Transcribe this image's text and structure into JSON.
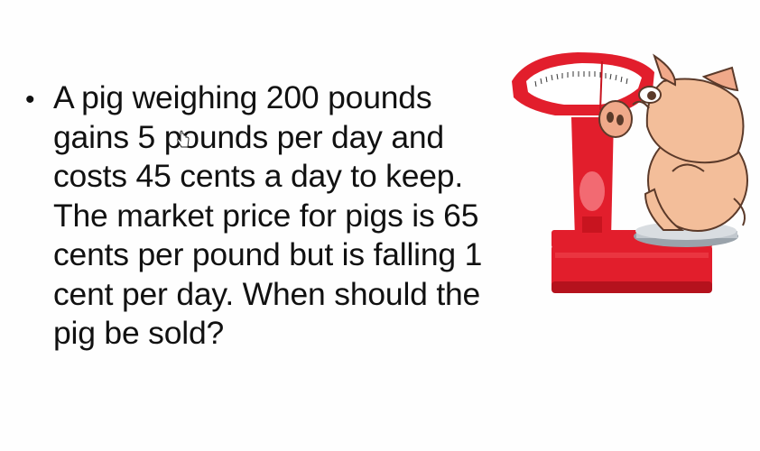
{
  "slide": {
    "bullet_symbol": "•",
    "bullet_text": "A pig weighing 200 pounds gains 5 pounds per day and costs 45 cents a day to keep. The market price for pigs is 65 cents per pound but is falling 1 cent per day. When should the pig be sold?"
  },
  "illustration": {
    "icon": "pig-on-scale-icon"
  },
  "cursor": {
    "icon": "hand-cursor-icon"
  },
  "colors": {
    "scale_red": "#e21e2c",
    "scale_dark": "#b5121d",
    "pig_skin": "#f3be9a",
    "pig_outline": "#5b3a2a",
    "text": "#111111"
  }
}
